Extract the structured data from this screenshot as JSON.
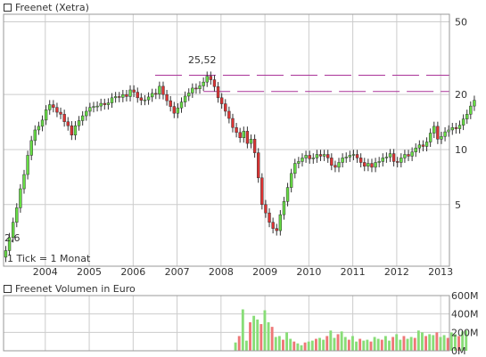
{
  "legend": {
    "price_label": "Freenet (Xetra)",
    "volume_label": "Freenet Volumen in Euro"
  },
  "colors": {
    "up": "#66dd44",
    "down": "#dd3333",
    "volume_up": "#88dd77",
    "volume_down": "#ee7777",
    "resistance": "#aa3399",
    "grid": "#cccccc",
    "text": "#333333",
    "annotation": "#999999"
  },
  "chart_data": [
    {
      "type": "candlestick",
      "title": "Freenet (Xetra)",
      "scale": "log",
      "ylim": [
        2.3,
        55
      ],
      "y_ticks": [
        5,
        10,
        20,
        50
      ],
      "x_ticks": [
        "2004",
        "2005",
        "2006",
        "2007",
        "2008",
        "2009",
        "2010",
        "2011",
        "2012",
        "2013"
      ],
      "x_tick_positions": [
        2004,
        2005,
        2006,
        2007,
        2008,
        2009,
        2010,
        2011,
        2012,
        2013
      ],
      "xlim": [
        2003.05,
        2013.2
      ],
      "annotations": {
        "interval_note": "1 Tick = 1 Monat",
        "high_label": "25,52",
        "low_label": "2,6"
      },
      "resistance_levels": [
        {
          "value": 25.5,
          "from": 2006.5,
          "to": 2013.2
        },
        {
          "value": 20.8,
          "from": 2007.6,
          "to": 2013.2
        }
      ],
      "close": [
        2.8,
        3.3,
        4.0,
        4.8,
        6.1,
        7.3,
        9.3,
        11.2,
        12.8,
        13.4,
        14.5,
        16.5,
        17.6,
        17.0,
        16.0,
        15.6,
        14.2,
        13.5,
        12.0,
        13.5,
        14.4,
        15.3,
        16.2,
        17.0,
        17.2,
        17.3,
        17.9,
        17.6,
        18.0,
        19.2,
        19.5,
        19.3,
        20.0,
        19.5,
        21.2,
        20.6,
        19.2,
        18.6,
        18.7,
        19.4,
        20.3,
        20.1,
        22.2,
        20.0,
        18.5,
        17.2,
        15.8,
        16.9,
        18.2,
        19.6,
        20.4,
        21.7,
        21.5,
        22.3,
        23.4,
        25.2,
        24.1,
        22.1,
        19.2,
        17.8,
        16.2,
        14.8,
        13.2,
        12.4,
        11.6,
        12.6,
        10.8,
        11.4,
        9.6,
        7.0,
        5.0,
        4.5,
        4.0,
        3.7,
        3.6,
        4.4,
        5.2,
        6.2,
        7.4,
        8.4,
        8.6,
        9.0,
        9.3,
        8.9,
        9.0,
        9.4,
        9.2,
        9.4,
        9.0,
        8.2,
        8.0,
        8.5,
        9.0,
        9.1,
        9.3,
        9.4,
        9.0,
        8.5,
        8.1,
        8.4,
        8.0,
        8.5,
        8.6,
        9.0,
        9.1,
        9.5,
        8.6,
        8.5,
        9.0,
        9.4,
        9.2,
        9.7,
        10.2,
        10.6,
        10.4,
        11.0,
        12.3,
        13.4,
        11.4,
        11.8,
        12.5,
        12.8,
        13.2,
        13.0,
        13.6,
        14.7,
        15.6,
        17.3,
        18.6
      ]
    },
    {
      "type": "bar",
      "title": "Freenet Volumen in Euro",
      "ylim": [
        0,
        600
      ],
      "y_ticks": [
        0,
        200,
        400,
        600
      ],
      "y_tick_labels": [
        "0M",
        "200M",
        "400M",
        "600M"
      ],
      "unit": "Mio. Euro",
      "start": 2008.33,
      "values": [
        90,
        160,
        450,
        110,
        310,
        380,
        340,
        290,
        440,
        310,
        260,
        150,
        160,
        120,
        200,
        130,
        100,
        80,
        60,
        90,
        100,
        110,
        130,
        140,
        120,
        160,
        220,
        140,
        180,
        210,
        150,
        120,
        160,
        100,
        130,
        110,
        120,
        100,
        150,
        130,
        120,
        160,
        110,
        150,
        180,
        120,
        160,
        130,
        150,
        140,
        220,
        200,
        160,
        180,
        170,
        200,
        150,
        170,
        140,
        200,
        180,
        160,
        210,
        220
      ]
    }
  ]
}
